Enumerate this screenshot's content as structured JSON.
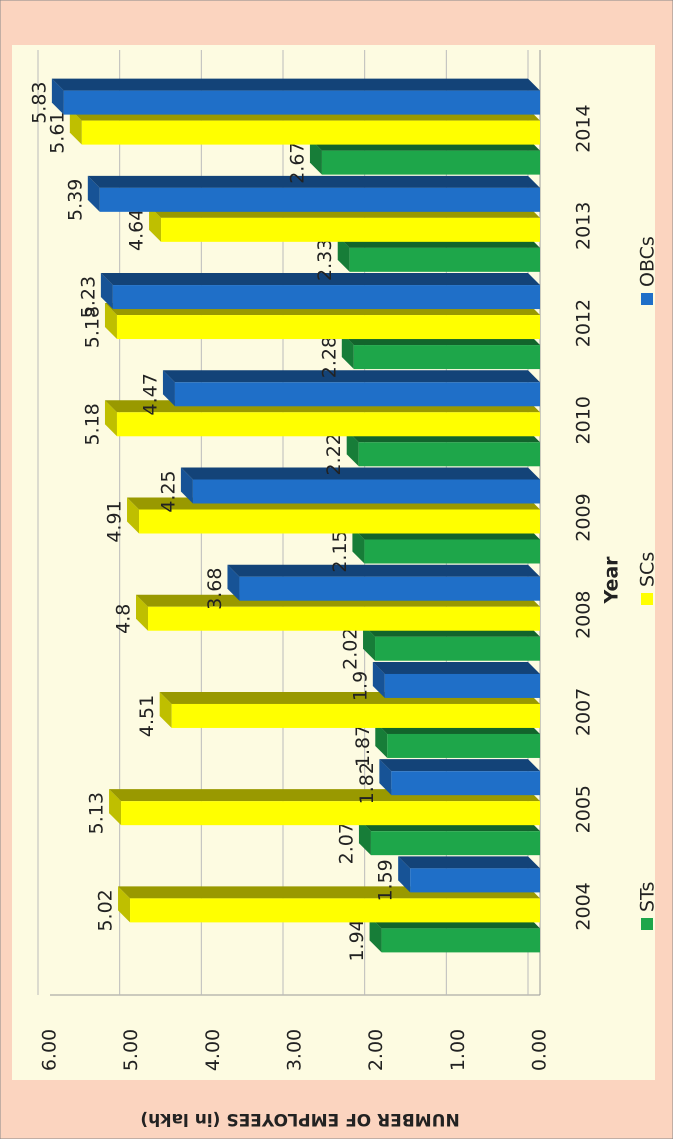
{
  "chart_data": {
    "type": "bar",
    "y_axis_label": "NUMBER OF EMPLOYEES (in lakh)",
    "x_axis_label": "Year",
    "categories": [
      "2004",
      "2005",
      "2007",
      "2008",
      "2009",
      "2010",
      "2012",
      "2013",
      "2014"
    ],
    "series": [
      {
        "name": "STs",
        "color": "#1ea64a",
        "values": [
          1.94,
          2.07,
          1.87,
          2.02,
          2.15,
          2.22,
          2.28,
          2.33,
          2.67
        ]
      },
      {
        "name": "SCs",
        "color": "#ffff00",
        "values": [
          5.02,
          5.13,
          4.51,
          4.8,
          4.91,
          5.18,
          5.18,
          4.64,
          5.61
        ]
      },
      {
        "name": "OBCs",
        "color": "#1f6fc8",
        "values": [
          1.59,
          1.82,
          1.9,
          3.68,
          4.25,
          4.47,
          5.23,
          5.39,
          5.83
        ]
      }
    ],
    "ylim": [
      0,
      6
    ],
    "yticks": [
      {
        "value": 0,
        "label": "0.00"
      },
      {
        "value": 1,
        "label": "1.00"
      },
      {
        "value": 2,
        "label": "2.00"
      },
      {
        "value": 3,
        "label": "3.00"
      },
      {
        "value": 4,
        "label": "4.00"
      },
      {
        "value": 5,
        "label": "5.00"
      },
      {
        "value": 6,
        "label": "6.00"
      }
    ],
    "grid": true,
    "legend": "bottom"
  }
}
